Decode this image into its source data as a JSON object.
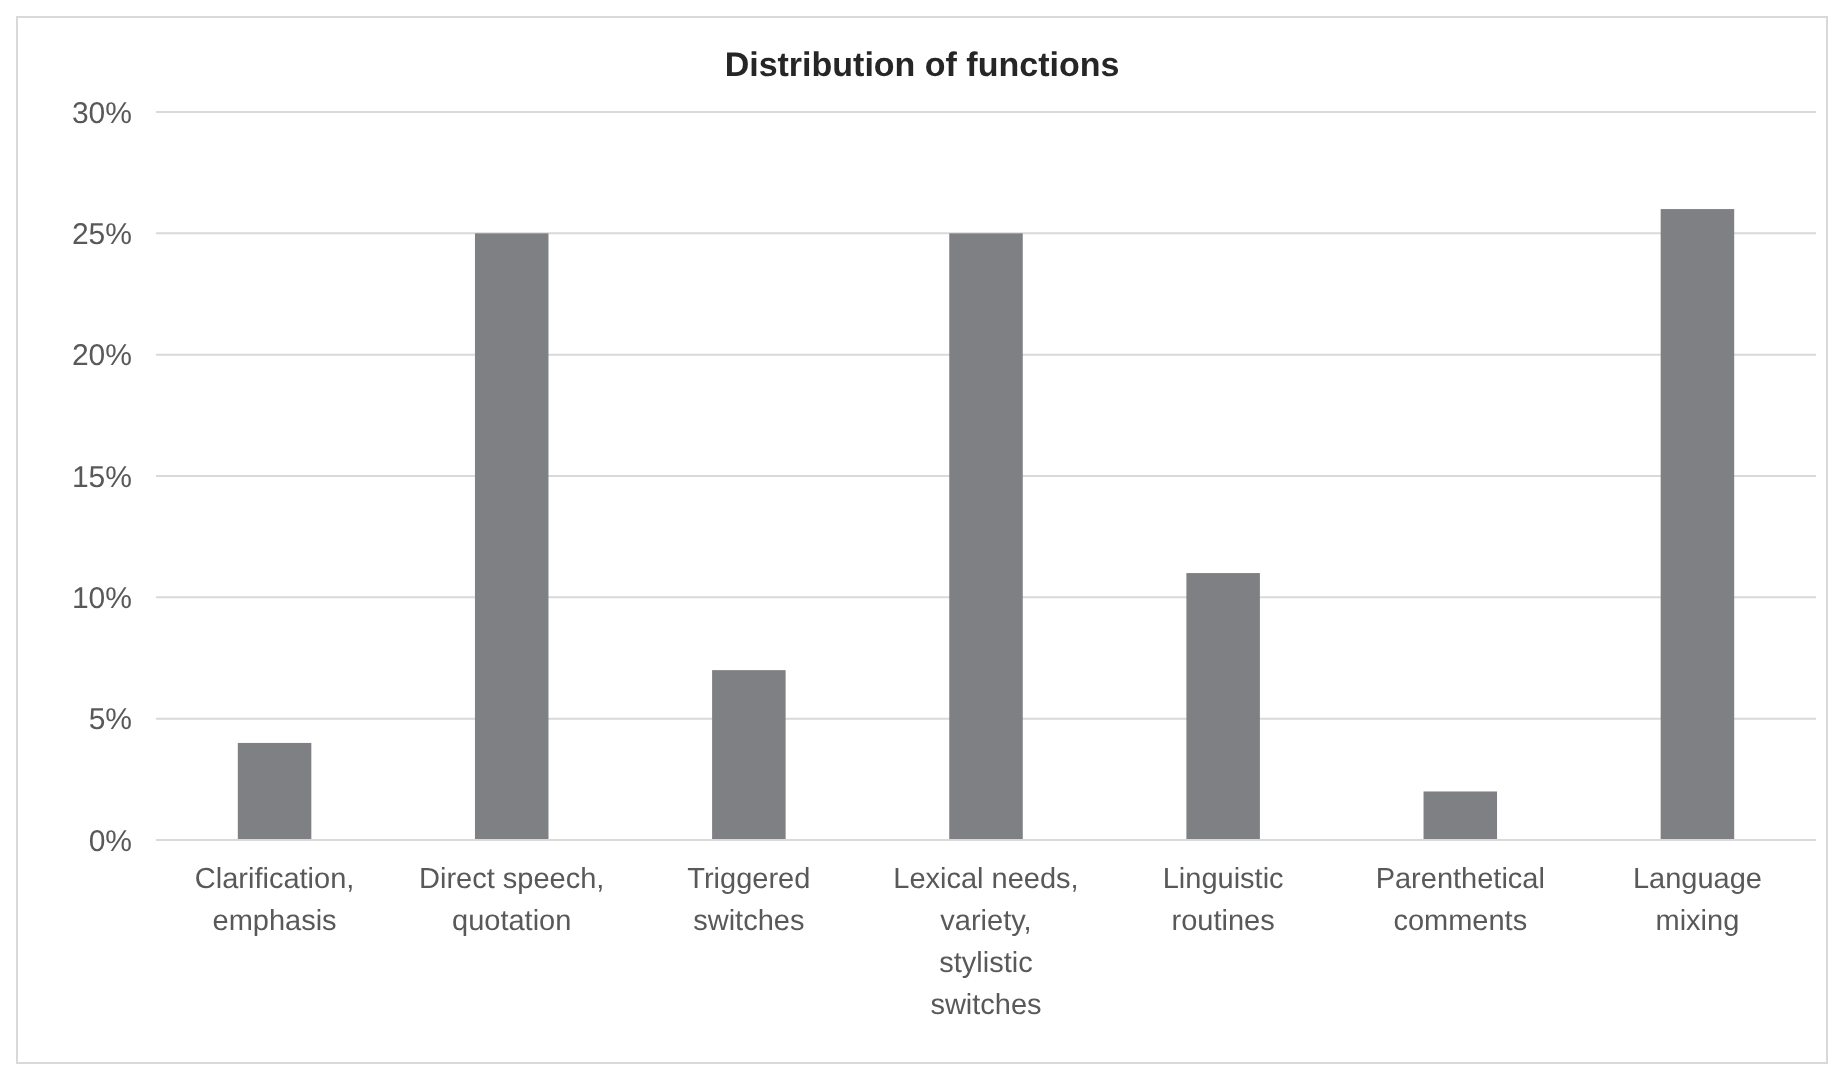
{
  "chart_data": {
    "type": "bar",
    "title": "Distribution of functions",
    "categories": [
      "Clarification, emphasis",
      "Direct speech, quotation",
      "Triggered switches",
      "Lexical needs, variety, stylistic switches",
      "Linguistic routines",
      "Parenthetical comments",
      "Language mixing"
    ],
    "values": [
      4,
      25,
      7,
      25,
      11,
      2,
      26
    ],
    "color": "#7f8084",
    "ylim": [
      0,
      30
    ],
    "yticks": [
      {
        "value": 0,
        "label": "0%"
      },
      {
        "value": 5,
        "label": "5%"
      },
      {
        "value": 10,
        "label": "10%"
      },
      {
        "value": 15,
        "label": "15%"
      },
      {
        "value": 20,
        "label": "20%"
      },
      {
        "value": 25,
        "label": "25%"
      },
      {
        "value": 30,
        "label": "30%"
      }
    ],
    "grid": "y"
  }
}
